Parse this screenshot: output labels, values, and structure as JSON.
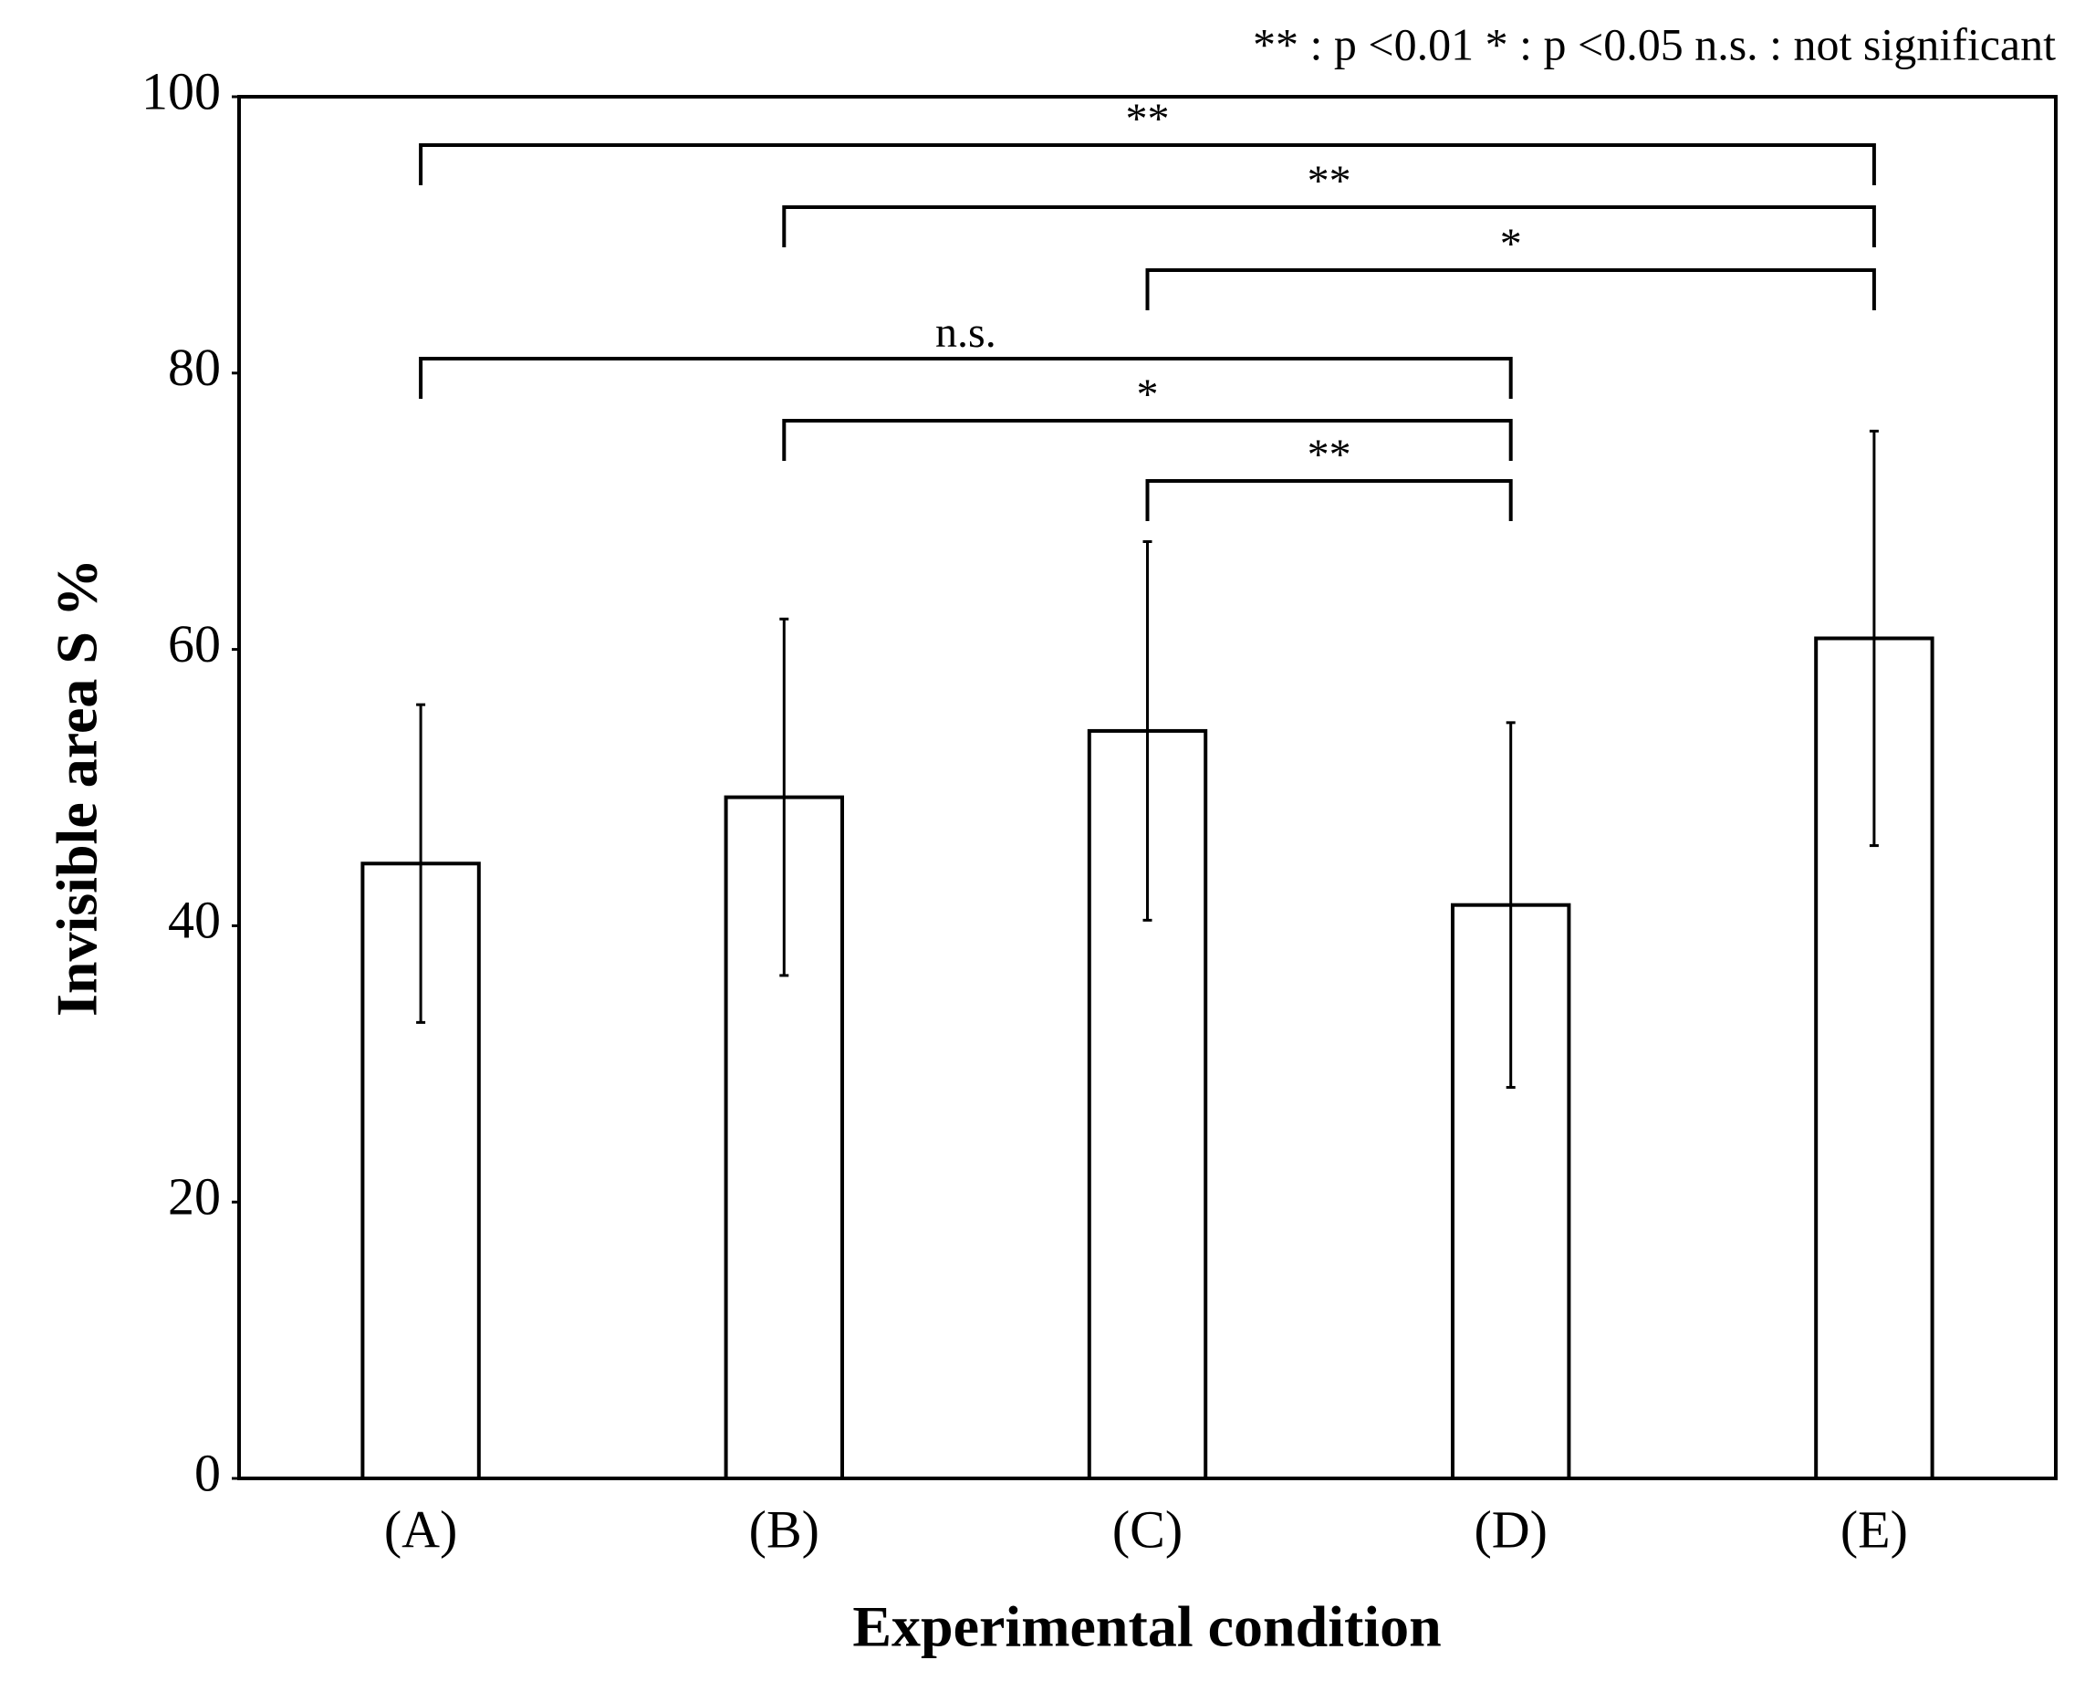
{
  "chart_data": {
    "type": "bar",
    "note": "** : p <0.01   * : p <0.05   n.s. : not significant",
    "xlabel": "Experimental condition",
    "ylabel": "Invisible area  S  %",
    "categories": [
      "(A)",
      "(B)",
      "(C)",
      "(D)",
      "(E)"
    ],
    "values": [
      44.5,
      49.3,
      54.1,
      41.5,
      60.8
    ],
    "errors": [
      11.5,
      12.9,
      13.7,
      13.2,
      15.0
    ],
    "color": "#ffffff",
    "edge_color": "#000000",
    "ylim": [
      0,
      100
    ],
    "yticks": [
      0,
      20,
      40,
      60,
      80,
      100
    ],
    "grid": false,
    "comparisons": [
      {
        "from": "(A)",
        "to": "(E)",
        "label": "**"
      },
      {
        "from": "(B)",
        "to": "(E)",
        "label": "**"
      },
      {
        "from": "(C)",
        "to": "(E)",
        "label": "*"
      },
      {
        "from": "(A)",
        "to": "(D)",
        "label": "n.s."
      },
      {
        "from": "(B)",
        "to": "(D)",
        "label": "*"
      },
      {
        "from": "(C)",
        "to": "(D)",
        "label": "**"
      }
    ]
  }
}
